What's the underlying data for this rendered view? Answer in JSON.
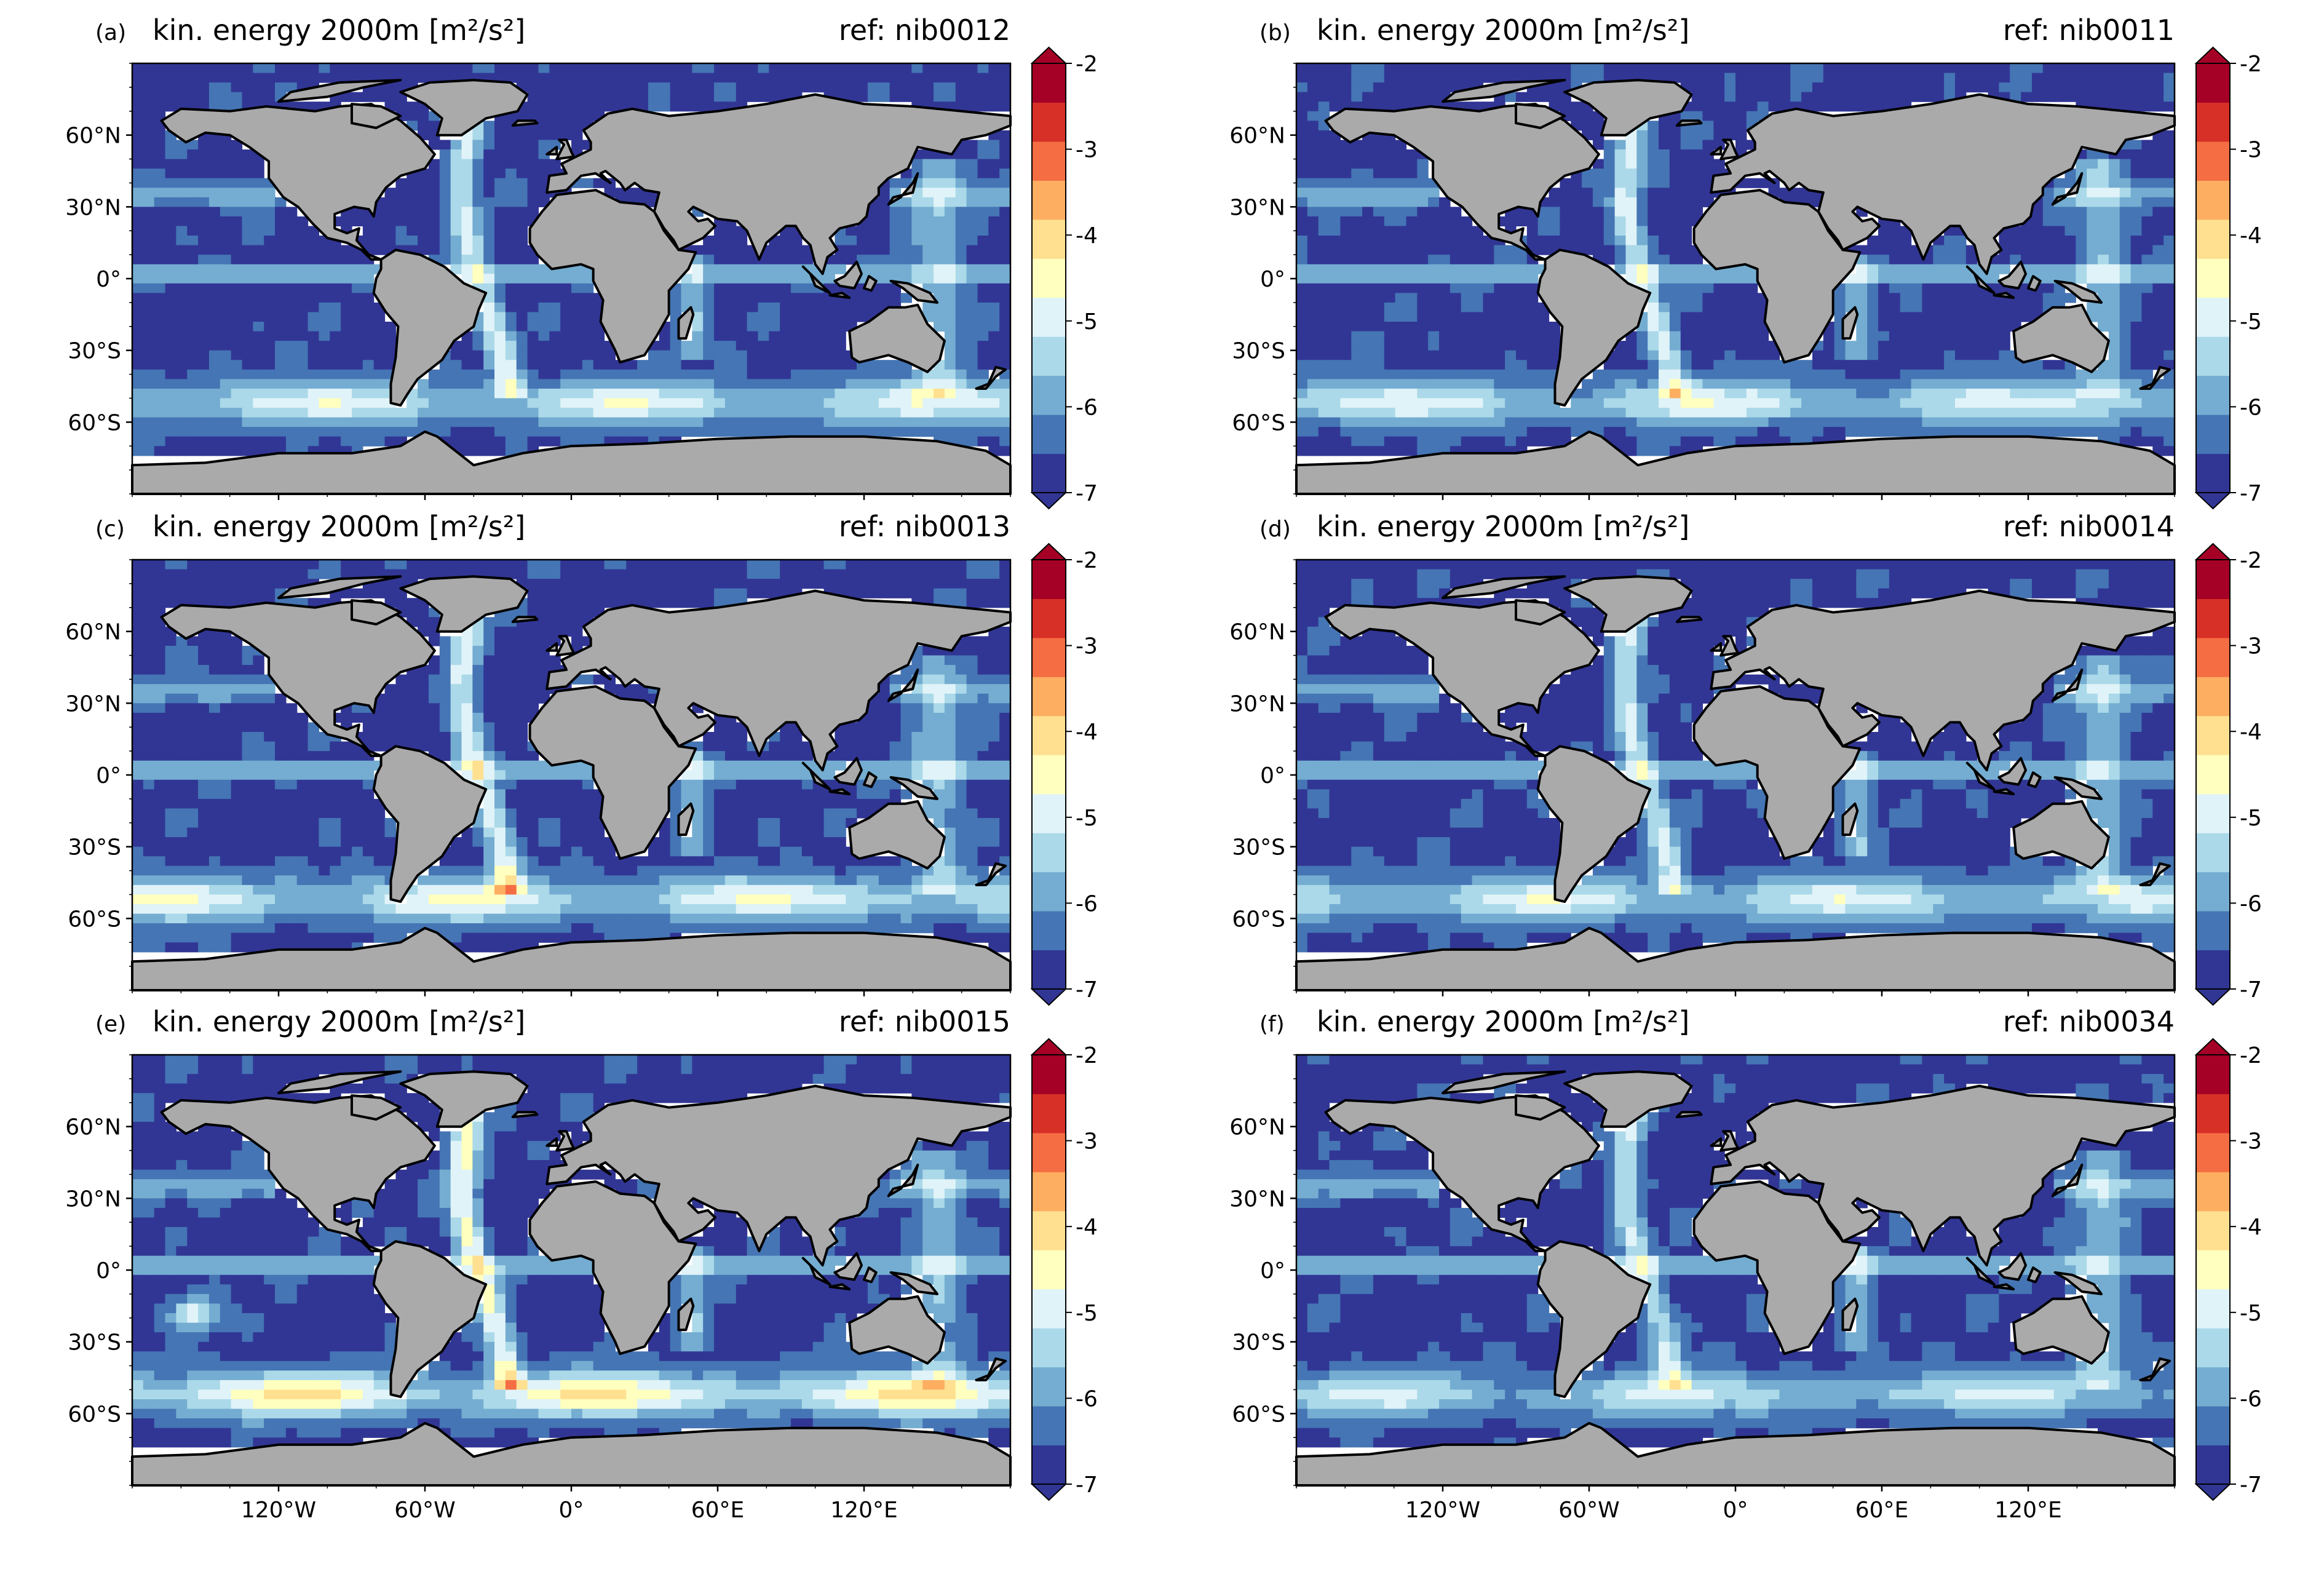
{
  "chart_data": {
    "type": "heatmap",
    "colorbar": {
      "min": -7,
      "max": -2,
      "step": 0.5,
      "extend": "both",
      "ticks": [
        "-2",
        "-3",
        "-4",
        "-5",
        "-6",
        "-7"
      ],
      "colors": [
        "#313695",
        "#4575b4",
        "#74add1",
        "#abd9e9",
        "#e0f3f8",
        "#ffffbf",
        "#fee090",
        "#fdae61",
        "#f46d43",
        "#d73027",
        "#a50026"
      ]
    },
    "lat_ticks": [
      "60°N",
      "30°N",
      "0°",
      "30°S",
      "60°S"
    ],
    "lon_ticks": [
      "120°W",
      "60°W",
      "0°",
      "60°E",
      "120°E"
    ],
    "land_color": "#aaaaaa",
    "panels": [
      {
        "letter": "(a)",
        "title": "kin. energy 2000m [m²/s²]",
        "ref": "ref: nib0012",
        "intensity": 0.35
      },
      {
        "letter": "(b)",
        "title": "kin. energy 2000m [m²/s²]",
        "ref": "ref: nib0011",
        "intensity": 0.32
      },
      {
        "letter": "(c)",
        "title": "kin. energy 2000m [m²/s²]",
        "ref": "ref: nib0013",
        "intensity": 0.45
      },
      {
        "letter": "(d)",
        "title": "kin. energy 2000m [m²/s²]",
        "ref": "ref: nib0014",
        "intensity": 0.3
      },
      {
        "letter": "(e)",
        "title": "kin. energy 2000m [m²/s²]",
        "ref": "ref: nib0015",
        "intensity": 0.7
      },
      {
        "letter": "(f)",
        "title": "kin. energy 2000m [m²/s²]",
        "ref": "ref: nib0034",
        "intensity": 0.2
      }
    ]
  }
}
